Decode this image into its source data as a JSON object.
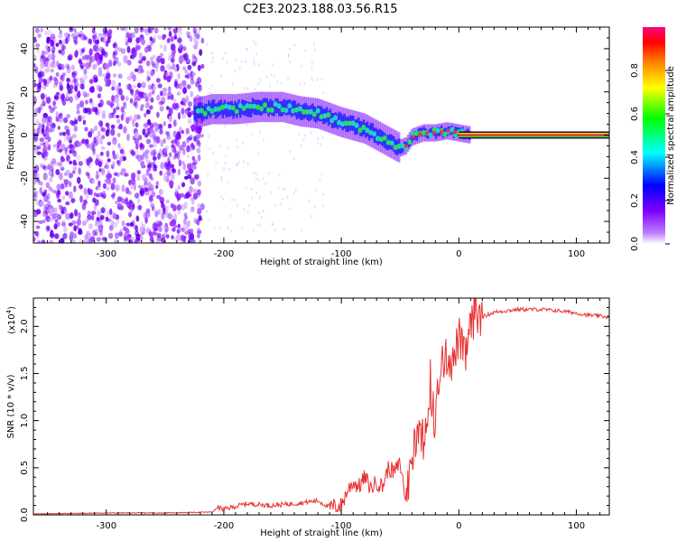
{
  "title": "C2E3.2023.188.03.56.R15",
  "chart_data": [
    {
      "type": "heatmap",
      "xlabel": "Height of straight line (km)",
      "ylabel": "Frequency (Hz)",
      "xlim": [
        -362,
        128
      ],
      "ylim": [
        -50,
        50
      ],
      "xticks": [
        -300,
        -200,
        -100,
        0,
        100
      ],
      "yticks": [
        -40,
        -20,
        0,
        20,
        40
      ],
      "xtick_labels": [
        "-300",
        "-200",
        "-100",
        "0",
        "100"
      ],
      "ytick_labels": [
        "-40",
        "-20",
        "0",
        "20",
        "40"
      ],
      "signal_track": {
        "x": [
          -225,
          -210,
          -190,
          -170,
          -150,
          -135,
          -120,
          -100,
          -80,
          -60,
          -50,
          -45,
          -40,
          -30,
          -20,
          -10,
          0,
          10,
          50,
          100,
          128
        ],
        "y": [
          10,
          12,
          12,
          13,
          13,
          11,
          10,
          6,
          3,
          -3,
          -6,
          -5,
          -1,
          1,
          1,
          2,
          1,
          0,
          0,
          0,
          0
        ]
      },
      "noise_region": {
        "x": [
          -362,
          -218
        ],
        "y": [
          -50,
          50
        ]
      },
      "colorbar": {
        "label": "Normalized spectral amplitude",
        "range": [
          0,
          1
        ],
        "ticks": [
          0.0,
          0.2,
          0.4,
          0.6,
          0.8
        ],
        "tick_labels": [
          "0.0",
          "0.2",
          "0.4",
          "0.6",
          "0.8"
        ],
        "colormap": [
          "#ffffff",
          "#8000ff",
          "#0000ff",
          "#00ffff",
          "#00ff00",
          "#ffff00",
          "#ff8000",
          "#ff0000",
          "#ff0080"
        ]
      }
    },
    {
      "type": "line",
      "xlabel": "Height of straight line (km)",
      "ylabel": "SNR (10 * v/v)",
      "multiplier_label": "(x10",
      "multiplier_exp": "4",
      "xlim": [
        -362,
        128
      ],
      "ylim": [
        0,
        2.3
      ],
      "xticks": [
        -300,
        -200,
        -100,
        0,
        100
      ],
      "yticks": [
        0.0,
        0.5,
        1.0,
        1.5,
        2.0
      ],
      "xtick_labels": [
        "-300",
        "-200",
        "-100",
        "0",
        "100"
      ],
      "ytick_labels": [
        "0.0",
        "0.5",
        "1.0",
        "1.5",
        "2.0"
      ],
      "color": "#e83030",
      "series": [
        {
          "x": [
            -362,
            -300,
            -250,
            -210,
            -205,
            -200,
            -180,
            -160,
            -140,
            -120,
            -110,
            -100,
            -95,
            -90,
            -85,
            -80,
            -75,
            -70,
            -65,
            -60,
            -55,
            -50,
            -45,
            -40,
            -35,
            -30,
            -25,
            -20,
            -15,
            -10,
            -5,
            0,
            5,
            10,
            20,
            30,
            50,
            70,
            90,
            110,
            128
          ],
          "y": [
            0.01,
            0.02,
            0.02,
            0.03,
            0.08,
            0.06,
            0.12,
            0.1,
            0.12,
            0.15,
            0.08,
            0.1,
            0.25,
            0.35,
            0.3,
            0.4,
            0.28,
            0.35,
            0.3,
            0.5,
            0.45,
            0.55,
            0.15,
            0.6,
            0.95,
            0.8,
            1.3,
            1.0,
            1.55,
            1.7,
            1.6,
            1.9,
            1.65,
            2.0,
            2.1,
            2.15,
            2.18,
            2.18,
            2.16,
            2.12,
            2.1
          ]
        }
      ]
    }
  ]
}
